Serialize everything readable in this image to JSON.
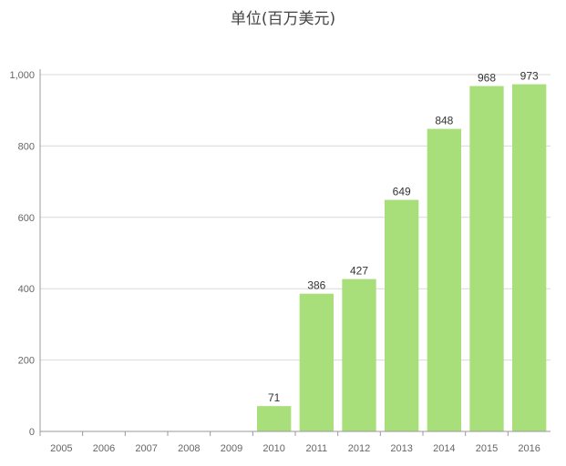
{
  "chart_data": {
    "type": "bar",
    "title": "单位(百万美元)",
    "xlabel": "",
    "ylabel": "",
    "categories": [
      "2005",
      "2006",
      "2007",
      "2008",
      "2009",
      "2010",
      "2011",
      "2012",
      "2013",
      "2014",
      "2015",
      "2016"
    ],
    "values": [
      0,
      0,
      0,
      0,
      0,
      71,
      386,
      427,
      649,
      848,
      968,
      973
    ],
    "data_labels": [
      "",
      "",
      "",
      "",
      "",
      "71",
      "386",
      "427",
      "649",
      "848",
      "968",
      "973"
    ],
    "ylim": [
      0,
      1000
    ],
    "yticks": [
      0,
      200,
      400,
      600,
      800,
      1000
    ],
    "ytick_labels": [
      "0",
      "200",
      "400",
      "600",
      "800",
      "1,000"
    ],
    "grid": true,
    "colors": {
      "bar": "#a8df7b",
      "grid": "#d9d9d9",
      "axis": "#999999"
    }
  }
}
